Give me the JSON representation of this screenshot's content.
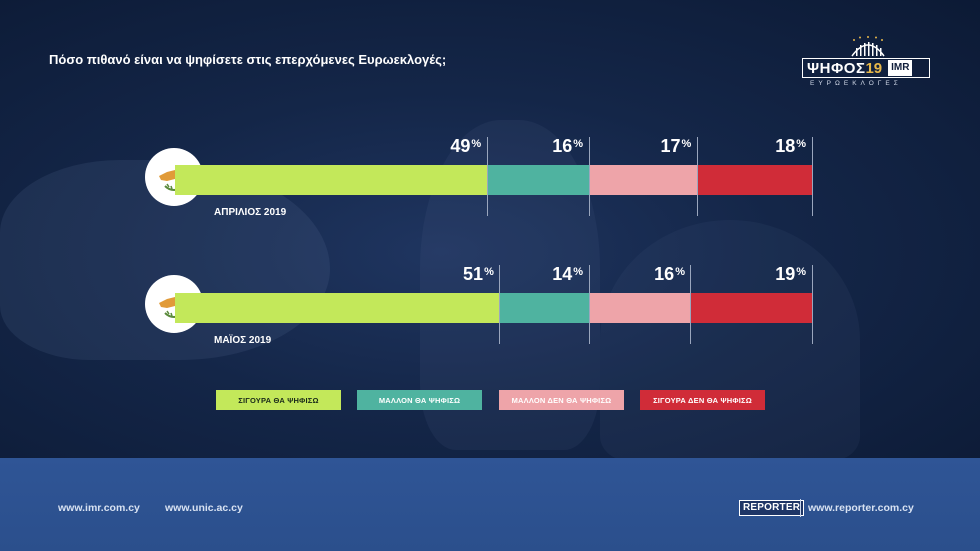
{
  "question": "Πόσο πιθανό είναι να ψηφίσετε στις επερχόμενες Ευρωεκλογές;",
  "logo": {
    "main": "ΨΗΦΟΣ",
    "year": "19",
    "badge": "IMR",
    "sub": "ΕΥΡΩΕΚΛΟΓΕΣ"
  },
  "colors": {
    "certain_yes": "#c3e85a",
    "likely_yes": "#4fb3a0",
    "likely_no": "#eea4a9",
    "certain_no": "#d02c38"
  },
  "chart_data": {
    "type": "bar",
    "stacked": true,
    "orientation": "horizontal",
    "categories": [
      "ΑΠΡΙΛΙΟΣ 2019",
      "ΜΑΪΟΣ 2019"
    ],
    "series": [
      {
        "name": "ΣΙΓΟΥΡΑ ΘΑ ΨΗΦΙΣΩ",
        "values": [
          49,
          51
        ],
        "color": "#c3e85a"
      },
      {
        "name": "ΜΑΛΛΟΝ ΘΑ ΨΗΦΙΣΩ",
        "values": [
          16,
          14
        ],
        "color": "#4fb3a0"
      },
      {
        "name": "ΜΑΛΛΟΝ ΔΕΝ ΘΑ ΨΗΦΙΣΩ",
        "values": [
          17,
          16
        ],
        "color": "#eea4a9"
      },
      {
        "name": "ΣΙΓΟΥΡΑ ΔΕΝ ΘΑ ΨΗΦΙΣΩ",
        "values": [
          18,
          19
        ],
        "color": "#d02c38"
      }
    ],
    "unit": "%",
    "xlim": [
      0,
      100
    ],
    "legend_position": "bottom"
  },
  "footer": {
    "link1": "www.imr.com.cy",
    "link2": "www.unic.ac.cy",
    "reporter_badge": "REPORTER",
    "link3": "www.reporter.com.cy"
  }
}
